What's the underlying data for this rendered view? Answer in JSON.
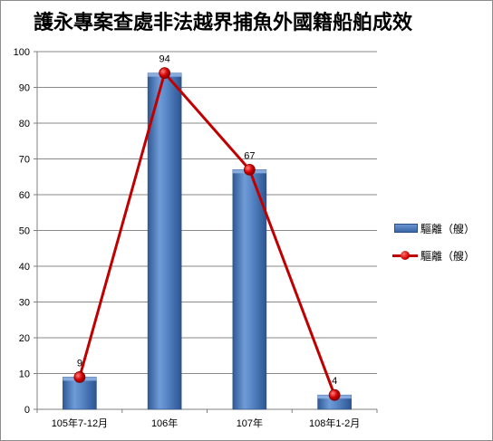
{
  "chart_data": {
    "type": "bar",
    "title": "護永專案查處非法越界捕魚外國籍船舶成效",
    "categories": [
      "105年7-12月",
      "106年",
      "107年",
      "108年1-2月"
    ],
    "series": [
      {
        "name": "驅離（艘）",
        "type": "bar",
        "values": [
          9,
          94,
          67,
          4
        ],
        "color": "#4a7bc0"
      },
      {
        "name": "驅離（艘）",
        "type": "line",
        "values": [
          9,
          94,
          67,
          4
        ],
        "color": "#c00000"
      }
    ],
    "data_labels": [
      "9",
      "94",
      "67",
      "4"
    ],
    "yticks": [
      "0",
      "10",
      "20",
      "30",
      "40",
      "50",
      "60",
      "70",
      "80",
      "90",
      "100"
    ],
    "ylim": [
      0,
      100
    ],
    "xlabel": "",
    "ylabel": "",
    "grid": true,
    "legend": "right"
  }
}
